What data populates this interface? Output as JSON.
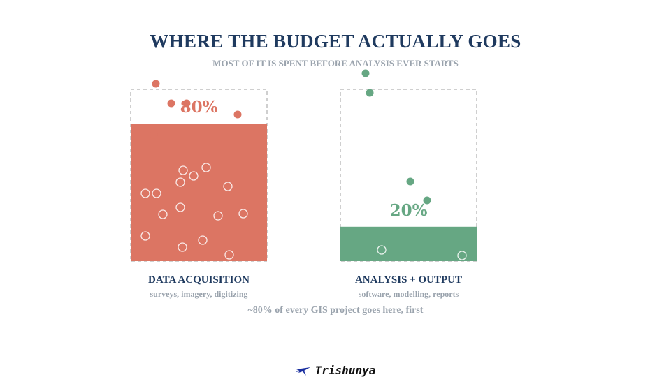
{
  "header": {
    "title": "WHERE THE BUDGET ACTUALLY GOES",
    "subtitle": "MOST OF IT IS SPENT BEFORE ANALYSIS EVER STARTS"
  },
  "footnote": "~80% of every GIS project goes here, first",
  "brand": {
    "name": "Trishunya"
  },
  "colors": {
    "acquisition": "#dc7563",
    "analysis": "#66a783",
    "title": "#1f3a5f",
    "muted": "#9aa3ad",
    "frame": "#cfcfcf"
  },
  "chart_data": {
    "type": "bar",
    "ylim": [
      0,
      100
    ],
    "categories": [
      "DATA ACQUISITION",
      "ANALYSIS + OUTPUT"
    ],
    "descriptions": [
      "surveys, imagery, digitizing",
      "software, modelling, reports"
    ],
    "values": [
      80,
      20
    ],
    "value_labels": [
      "80%",
      "20%"
    ],
    "colors": [
      "#dc7563",
      "#66a783"
    ]
  }
}
